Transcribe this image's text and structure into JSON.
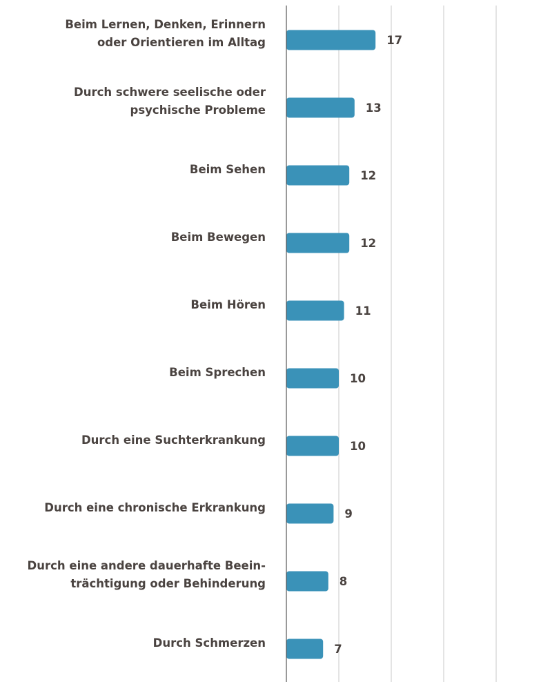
{
  "chart_data": {
    "type": "bar",
    "orientation": "horizontal",
    "categories": [
      "Beim Lernen, Denken, Erinnern oder Orientieren im Alltag",
      "Durch schwere seelische oder psychische Probleme",
      "Beim Sehen",
      "Beim Bewegen",
      "Beim Hören",
      "Beim Sprechen",
      "Durch eine Suchterkrankung",
      "Durch eine chronische Erkrankung",
      "Durch eine andere dauerhafte Beeinträchtigung oder Behinderung",
      "Durch Schmerzen"
    ],
    "category_lines": [
      [
        "Beim Lernen, Denken, Erinnern",
        "oder Orientieren im Alltag"
      ],
      [
        "Durch schwere seelische oder",
        "psychische Probleme"
      ],
      [
        "Beim Sehen"
      ],
      [
        "Beim Bewegen"
      ],
      [
        "Beim Hören"
      ],
      [
        "Beim Sprechen"
      ],
      [
        "Durch eine Suchterkrankung"
      ],
      [
        "Durch eine chronische Erkrankung"
      ],
      [
        "Durch eine andere dauerhafte Beein-",
        "trächtigung oder Behinderung"
      ],
      [
        "Durch Schmerzen"
      ]
    ],
    "values": [
      17,
      13,
      12,
      12,
      11,
      10,
      10,
      9,
      8,
      7
    ],
    "value_labels": [
      "17",
      "13",
      "12",
      "12",
      "11",
      "10",
      "10",
      "9",
      "8",
      "7"
    ],
    "xlim": [
      0,
      40
    ],
    "grid_step": 10,
    "grid": true,
    "bar_color": "#3a92b8",
    "grid_color": "#c8c8c8",
    "axis_color": "#555555",
    "text_color": "#4a4340"
  }
}
